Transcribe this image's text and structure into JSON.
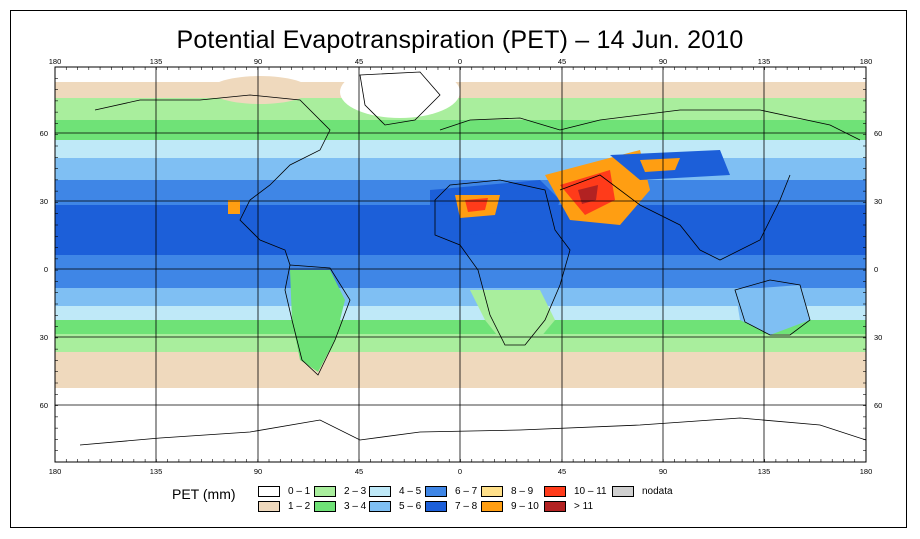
{
  "title": "Potential Evapotranspiration (PET) – 14 Jun. 2010",
  "axes": {
    "lon_labels": [
      "180",
      "135",
      "90",
      "45",
      "0",
      "45",
      "90",
      "135",
      "180"
    ],
    "lat_labels": [
      "60",
      "30",
      "0",
      "30",
      "60"
    ]
  },
  "legend": {
    "title": "PET (mm)",
    "items": [
      {
        "label": "0 – 1",
        "color": "#ffffff"
      },
      {
        "label": "1 – 2",
        "color": "#efd9bd"
      },
      {
        "label": "2 – 3",
        "color": "#a9ee9d"
      },
      {
        "label": "3 – 4",
        "color": "#6fe277"
      },
      {
        "label": "4 – 5",
        "color": "#bfe9f8"
      },
      {
        "label": "5 – 6",
        "color": "#7fbff3"
      },
      {
        "label": "6 – 7",
        "color": "#3f86e6"
      },
      {
        "label": "7 – 8",
        "color": "#1c5fd9"
      },
      {
        "label": "8 – 9",
        "color": "#ffe08a"
      },
      {
        "label": "9 – 10",
        "color": "#ff9e12"
      },
      {
        "label": "10 – 11",
        "color": "#ff3b1a"
      },
      {
        "label": "> 11",
        "color": "#b22222"
      },
      {
        "label": "nodata",
        "color": "#d0d0d0"
      }
    ]
  }
}
